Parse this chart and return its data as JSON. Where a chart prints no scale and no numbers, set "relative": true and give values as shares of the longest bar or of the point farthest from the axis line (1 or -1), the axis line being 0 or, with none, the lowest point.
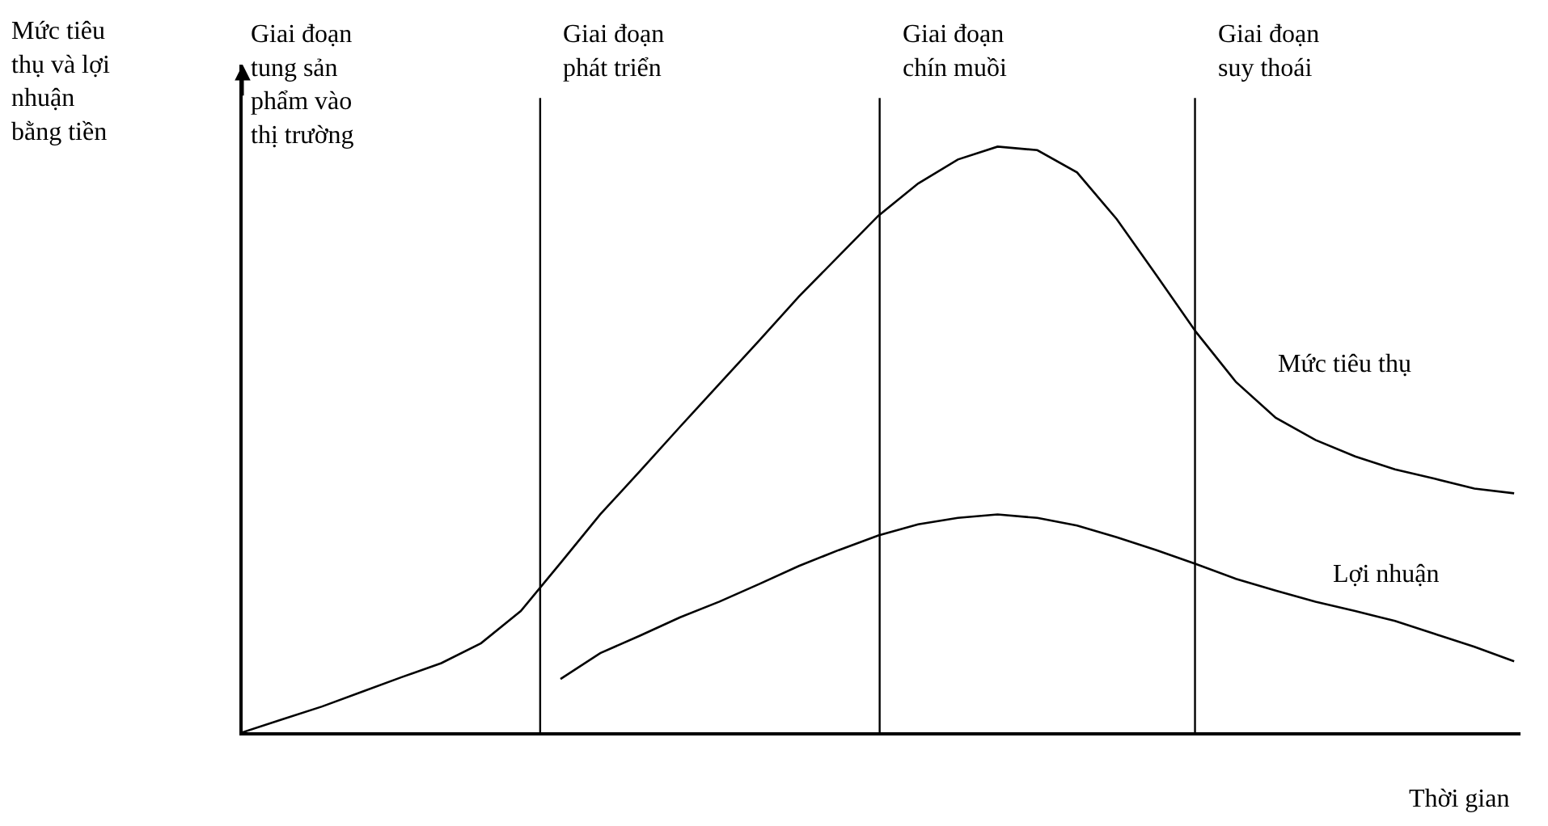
{
  "chart_data": {
    "type": "line",
    "relative": true,
    "legend": false,
    "marker": "none",
    "line_style": "solid",
    "xlabel": "Thời gian",
    "categories": [
      null,
      null,
      null,
      null,
      null,
      null,
      null,
      null,
      null,
      null,
      null,
      null,
      null,
      null,
      null,
      null,
      null,
      null,
      null,
      null,
      null,
      null,
      null,
      null,
      null,
      null,
      null,
      null,
      null,
      null,
      null,
      null,
      null
    ],
    "series": [
      {
        "name": "Mức tiêu thụ",
        "color": "#000000",
        "values": [
          0,
          0.022,
          0.044,
          0.069,
          0.094,
          0.118,
          0.152,
          0.207,
          0.289,
          0.372,
          0.446,
          0.521,
          0.595,
          0.669,
          0.744,
          0.813,
          0.882,
          0.937,
          0.978,
          1.0,
          0.994,
          0.956,
          0.876,
          0.78,
          0.683,
          0.598,
          0.537,
          0.499,
          0.471,
          0.449,
          0.433,
          0.416,
          0.408
        ]
      },
      {
        "name": "Lợi nhuận",
        "color": "#000000",
        "values": [
          null,
          null,
          null,
          null,
          null,
          null,
          null,
          null,
          0.091,
          0.135,
          0.165,
          0.196,
          0.223,
          0.253,
          0.284,
          0.311,
          0.336,
          0.355,
          0.366,
          0.372,
          0.366,
          0.353,
          0.333,
          0.311,
          0.287,
          0.262,
          0.242,
          0.223,
          0.207,
          0.19,
          0.168,
          0.146,
          0.121
        ]
      }
    ],
    "annotations": [
      "Mức tiêu\nthụ và lợi\nnhuận\nbằng tiền",
      "Giai đoạn\ntung sản\nphẩm vào\nthị trường",
      "Giai đoạn\nphát triển",
      "Giai đoạn\nchín muồi",
      "Giai đoạn\nsuy thoái"
    ]
  }
}
